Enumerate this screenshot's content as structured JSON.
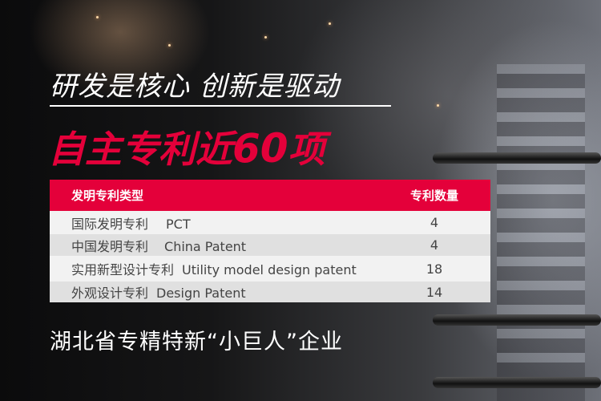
{
  "headline": "研发是核心 创新是驱动",
  "highlight": {
    "prefix": "自主专利近",
    "number": "60",
    "suffix": "项"
  },
  "table": {
    "headers": [
      "发明专利类型",
      "专利数量"
    ],
    "rows": [
      {
        "cn": "国际发明专利",
        "en": "PCT",
        "count": "4"
      },
      {
        "cn": "中国发明专利",
        "en": "China Patent",
        "count": "4"
      },
      {
        "cn": "实用新型设计专利",
        "en": "Utility model design patent",
        "count": "18"
      },
      {
        "cn": "外观设计专利",
        "en": "Design Patent",
        "count": "14"
      }
    ]
  },
  "footer": "湖北省专精特新“小巨人”企业",
  "colors": {
    "accent": "#e4003a",
    "row_light": "#f2f2f2",
    "row_dark": "#e0e0e0"
  }
}
